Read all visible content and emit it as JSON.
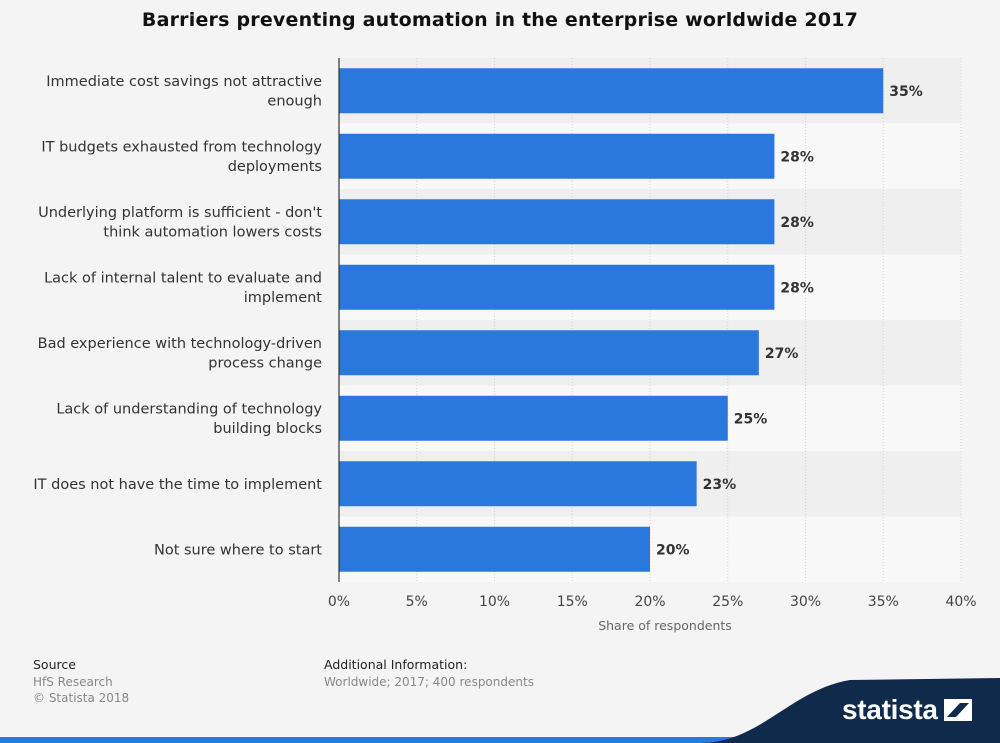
{
  "title": "Barriers preventing automation in the enterprise worldwide 2017",
  "colors": {
    "bar": "#2a77dd",
    "band": "#ececec",
    "footer_band": "#0f2a4a",
    "accent_line": "#2a77dd"
  },
  "chart_data": {
    "type": "bar",
    "orientation": "horizontal",
    "categories": [
      [
        "Immediate cost savings not attractive",
        "enough"
      ],
      [
        "IT budgets exhausted from technology",
        "deployments"
      ],
      [
        "Underlying platform is sufficient - don't",
        "think automation lowers costs"
      ],
      [
        "Lack of internal talent to evaluate and",
        "implement"
      ],
      [
        "Bad experience with technology-driven",
        "process change"
      ],
      [
        "Lack of understanding of technology",
        "building blocks"
      ],
      [
        "IT does not have the time to implement"
      ],
      [
        "Not sure where to start"
      ]
    ],
    "values": [
      35,
      28,
      28,
      28,
      27,
      25,
      23,
      20
    ],
    "value_labels": [
      "35%",
      "28%",
      "28%",
      "28%",
      "27%",
      "25%",
      "23%",
      "20%"
    ],
    "xlim": [
      0,
      40
    ],
    "x_ticks": [
      0,
      5,
      10,
      15,
      20,
      25,
      30,
      35,
      40
    ],
    "x_tick_labels": [
      "0%",
      "5%",
      "10%",
      "15%",
      "20%",
      "25%",
      "30%",
      "35%",
      "40%"
    ],
    "xlabel": "Share of respondents",
    "ylabel": "",
    "grid": true
  },
  "footer": {
    "source_heading": "Source",
    "source_lines": [
      "HfS Research",
      "© Statista 2018"
    ],
    "info_heading": "Additional Information:",
    "info_text": "Worldwide; 2017; 400 respondents"
  },
  "brand": {
    "name": "statista",
    "icon": "statista-logo-icon"
  }
}
